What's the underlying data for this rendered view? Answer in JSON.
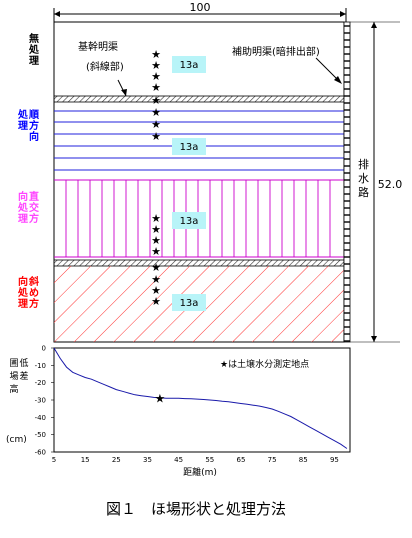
{
  "top_dimension": "100",
  "right_dimension": "52.0",
  "drain_label": "排水路",
  "left_note": [
    "基幹明渠",
    "(斜線部)"
  ],
  "right_note": "補助明渠(暗排出部)",
  "sections": [
    {
      "label": "無処理",
      "color": "#000000",
      "area": "13a"
    },
    {
      "label": "順方向処理",
      "color": "#0000ff",
      "area": "13a"
    },
    {
      "label": "直交方向処理",
      "color": "#ff44ff",
      "area": "13a"
    },
    {
      "label": "斜め方向処理",
      "color": "#ff0000",
      "area": "13a"
    }
  ],
  "profile_ylabel": [
    "圃場高低差",
    "(cm)"
  ],
  "profile_xlabel": "距離(m)",
  "legend_note": "★は土壌水分測定地点",
  "caption": "図１　ほ場形状と処理方法",
  "chart_data": {
    "type": "line",
    "x": [
      5,
      7,
      9,
      11,
      13,
      15,
      17,
      19,
      21,
      23,
      25,
      27,
      29,
      31,
      33,
      35,
      37,
      39,
      41,
      43,
      45,
      47,
      49,
      51,
      53,
      55,
      57,
      59,
      61,
      63,
      65,
      67,
      69,
      71,
      73,
      75,
      77,
      79,
      81,
      83,
      85,
      87,
      89,
      91,
      93,
      95,
      97,
      99
    ],
    "values": [
      0,
      -6,
      -11,
      -14,
      -15.5,
      -17,
      -18,
      -19.5,
      -21,
      -22.5,
      -24,
      -25,
      -26,
      -27,
      -27.5,
      -28,
      -28.5,
      -28.8,
      -29,
      -29,
      -29,
      -29.2,
      -29.3,
      -29.5,
      -29.7,
      -30,
      -30.3,
      -30.7,
      -31,
      -31.5,
      -32,
      -32.5,
      -33,
      -33.5,
      -34.3,
      -35.2,
      -36.5,
      -38,
      -39.5,
      -41.5,
      -43.5,
      -45.5,
      -47.5,
      -49.5,
      -51.5,
      -53.5,
      -55.5,
      -58
    ],
    "marker": {
      "x": 39,
      "y": -29
    },
    "xticks": [
      5,
      15,
      25,
      35,
      45,
      55,
      65,
      75,
      85,
      95
    ],
    "yticks": [
      0,
      -10,
      -20,
      -30,
      -40,
      -50,
      -60
    ],
    "xlim": [
      5,
      100
    ],
    "ylim": [
      -60,
      0
    ],
    "xlabel": "距離(m)",
    "ylabel": "圃場高低差"
  }
}
